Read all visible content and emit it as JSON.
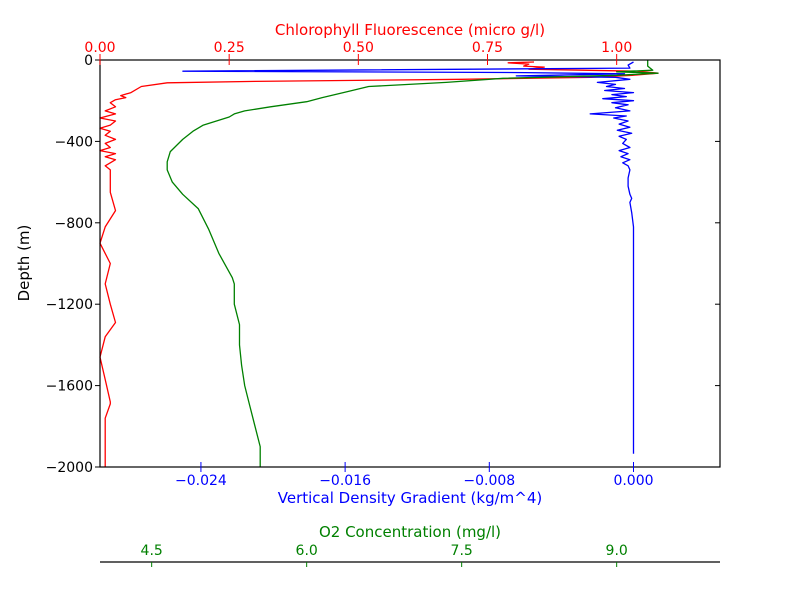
{
  "chart_data": {
    "type": "line",
    "y_axis": {
      "label": "Depth (m)",
      "range": [
        -2000,
        0
      ],
      "ticks": [
        0,
        -400,
        -800,
        -1200,
        -1600,
        -2000
      ],
      "tick_labels": [
        "0",
        "−400",
        "−800",
        "−1200",
        "−1600",
        "−2000"
      ]
    },
    "x_axes": [
      {
        "id": "chl",
        "label": "Chlorophyll Fluorescence (micro g/l)",
        "position": "top",
        "color": "#ff0000",
        "range": [
          0.0,
          1.2
        ],
        "ticks": [
          0.0,
          0.25,
          0.5,
          0.75,
          1.0
        ],
        "tick_labels": [
          "0.00",
          "0.25",
          "0.50",
          "0.75",
          "1.00"
        ]
      },
      {
        "id": "dens",
        "label": "Vertical Density Gradient (kg/m^4)",
        "position": "bottom",
        "color": "#0000ff",
        "range": [
          -0.0296,
          0.0048
        ],
        "ticks": [
          -0.024,
          -0.016,
          -0.008,
          0.0
        ],
        "tick_labels": [
          "−0.024",
          "−0.016",
          "−0.008",
          "0.000"
        ]
      },
      {
        "id": "o2",
        "label": "O2 Concentration (mg/l)",
        "position": "bottom-offset",
        "color": "#008000",
        "range": [
          4.0,
          10.0
        ],
        "ticks": [
          4.5,
          6.0,
          7.5,
          9.0
        ],
        "tick_labels": [
          "4.5",
          "6.0",
          "7.5",
          "9.0"
        ]
      }
    ],
    "series": [
      {
        "axis": "chl",
        "color": "#ff0000",
        "points": [
          [
            0.84,
            -10
          ],
          [
            0.79,
            -14
          ],
          [
            0.83,
            -20
          ],
          [
            0.82,
            -30
          ],
          [
            0.86,
            -35
          ],
          [
            0.83,
            -45
          ],
          [
            1.04,
            -55
          ],
          [
            1.08,
            -65
          ],
          [
            1.03,
            -75
          ],
          [
            0.95,
            -85
          ],
          [
            0.7,
            -95
          ],
          [
            0.3,
            -105
          ],
          [
            0.13,
            -112
          ],
          [
            0.08,
            -130
          ],
          [
            0.06,
            -160
          ],
          [
            0.04,
            -175
          ],
          [
            0.05,
            -185
          ],
          [
            0.03,
            -195
          ],
          [
            0.02,
            -210
          ],
          [
            0.03,
            -230
          ],
          [
            0.01,
            -250
          ],
          [
            0.03,
            -265
          ],
          [
            0.0,
            -285
          ],
          [
            0.03,
            -300
          ],
          [
            0.02,
            -320
          ],
          [
            0.0,
            -335
          ],
          [
            0.02,
            -350
          ],
          [
            0.01,
            -370
          ],
          [
            0.03,
            -390
          ],
          [
            0.01,
            -410
          ],
          [
            0.02,
            -430
          ],
          [
            0.0,
            -445
          ],
          [
            0.03,
            -460
          ],
          [
            0.01,
            -475
          ],
          [
            0.03,
            -490
          ],
          [
            0.02,
            -505
          ],
          [
            0.01,
            -520
          ],
          [
            0.02,
            -540
          ],
          [
            0.02,
            -650
          ],
          [
            0.03,
            -740
          ],
          [
            0.01,
            -820
          ],
          [
            0.0,
            -900
          ],
          [
            0.02,
            -1000
          ],
          [
            0.01,
            -1100
          ],
          [
            0.02,
            -1200
          ],
          [
            0.03,
            -1290
          ],
          [
            0.01,
            -1360
          ],
          [
            0.0,
            -1460
          ],
          [
            0.01,
            -1570
          ],
          [
            0.02,
            -1680
          ],
          [
            0.02,
            -1690
          ],
          [
            0.01,
            -1760
          ],
          [
            0.01,
            -2000
          ]
        ]
      },
      {
        "axis": "dens",
        "color": "#0000ff",
        "points": [
          [
            0.0,
            -10
          ],
          [
            -0.0003,
            -25
          ],
          [
            -0.0002,
            -40
          ],
          [
            -0.025,
            -55
          ],
          [
            -0.006,
            -62
          ],
          [
            -0.0005,
            -68
          ],
          [
            -0.0065,
            -78
          ],
          [
            -0.001,
            -85
          ],
          [
            -0.0002,
            -95
          ],
          [
            -0.002,
            -110
          ],
          [
            -0.001,
            -120
          ],
          [
            -0.0015,
            -130
          ],
          [
            -0.0005,
            -140
          ],
          [
            -0.0016,
            -150
          ],
          [
            0.0,
            -160
          ],
          [
            -0.0012,
            -170
          ],
          [
            -0.0004,
            -180
          ],
          [
            -0.0017,
            -190
          ],
          [
            0.0,
            -200
          ],
          [
            -0.0012,
            -210
          ],
          [
            -0.0003,
            -220
          ],
          [
            -0.001,
            -235
          ],
          [
            -0.0002,
            -250
          ],
          [
            -0.0024,
            -265
          ],
          [
            -0.0004,
            -275
          ],
          [
            -0.0011,
            -285
          ],
          [
            -0.0003,
            -300
          ],
          [
            -0.0008,
            -315
          ],
          [
            -0.0002,
            -330
          ],
          [
            -0.0009,
            -345
          ],
          [
            -0.0001,
            -360
          ],
          [
            -0.0008,
            -375
          ],
          [
            -0.0004,
            -390
          ],
          [
            -0.0006,
            -410
          ],
          [
            -0.0002,
            -430
          ],
          [
            -0.0008,
            -445
          ],
          [
            -0.0003,
            -460
          ],
          [
            -0.0007,
            -475
          ],
          [
            -0.0002,
            -490
          ],
          [
            -0.0006,
            -505
          ],
          [
            -0.0003,
            -520
          ],
          [
            -0.0002,
            -540
          ],
          [
            -0.0003,
            -580
          ],
          [
            -0.0003,
            -620
          ],
          [
            -0.0002,
            -660
          ],
          [
            -0.0001,
            -680
          ],
          [
            -0.0002,
            -700
          ],
          [
            -0.0001,
            -750
          ],
          [
            0.0,
            -820
          ],
          [
            0.0,
            -950
          ],
          [
            0.0,
            -1200
          ],
          [
            0.0,
            -1500
          ],
          [
            0.0,
            -1800
          ],
          [
            0.0,
            -1935
          ]
        ]
      },
      {
        "axis": "o2",
        "color": "#008000",
        "points": [
          [
            9.3,
            -2
          ],
          [
            9.3,
            -30
          ],
          [
            9.35,
            -50
          ],
          [
            9.0,
            -58
          ],
          [
            9.4,
            -65
          ],
          [
            9.0,
            -75
          ],
          [
            7.9,
            -90
          ],
          [
            7.35,
            -110
          ],
          [
            6.6,
            -130
          ],
          [
            6.4,
            -155
          ],
          [
            6.15,
            -185
          ],
          [
            6.0,
            -205
          ],
          [
            5.65,
            -230
          ],
          [
            5.4,
            -250
          ],
          [
            5.3,
            -265
          ],
          [
            5.25,
            -280
          ],
          [
            5.0,
            -320
          ],
          [
            4.9,
            -350
          ],
          [
            4.8,
            -390
          ],
          [
            4.68,
            -450
          ],
          [
            4.65,
            -500
          ],
          [
            4.65,
            -540
          ],
          [
            4.7,
            -600
          ],
          [
            4.8,
            -660
          ],
          [
            4.95,
            -730
          ],
          [
            5.05,
            -830
          ],
          [
            5.15,
            -950
          ],
          [
            5.28,
            -1070
          ],
          [
            5.3,
            -1100
          ],
          [
            5.3,
            -1200
          ],
          [
            5.35,
            -1300
          ],
          [
            5.35,
            -1400
          ],
          [
            5.37,
            -1500
          ],
          [
            5.4,
            -1600
          ],
          [
            5.45,
            -1700
          ],
          [
            5.5,
            -1800
          ],
          [
            5.55,
            -1900
          ],
          [
            5.55,
            -2000
          ]
        ]
      }
    ]
  }
}
